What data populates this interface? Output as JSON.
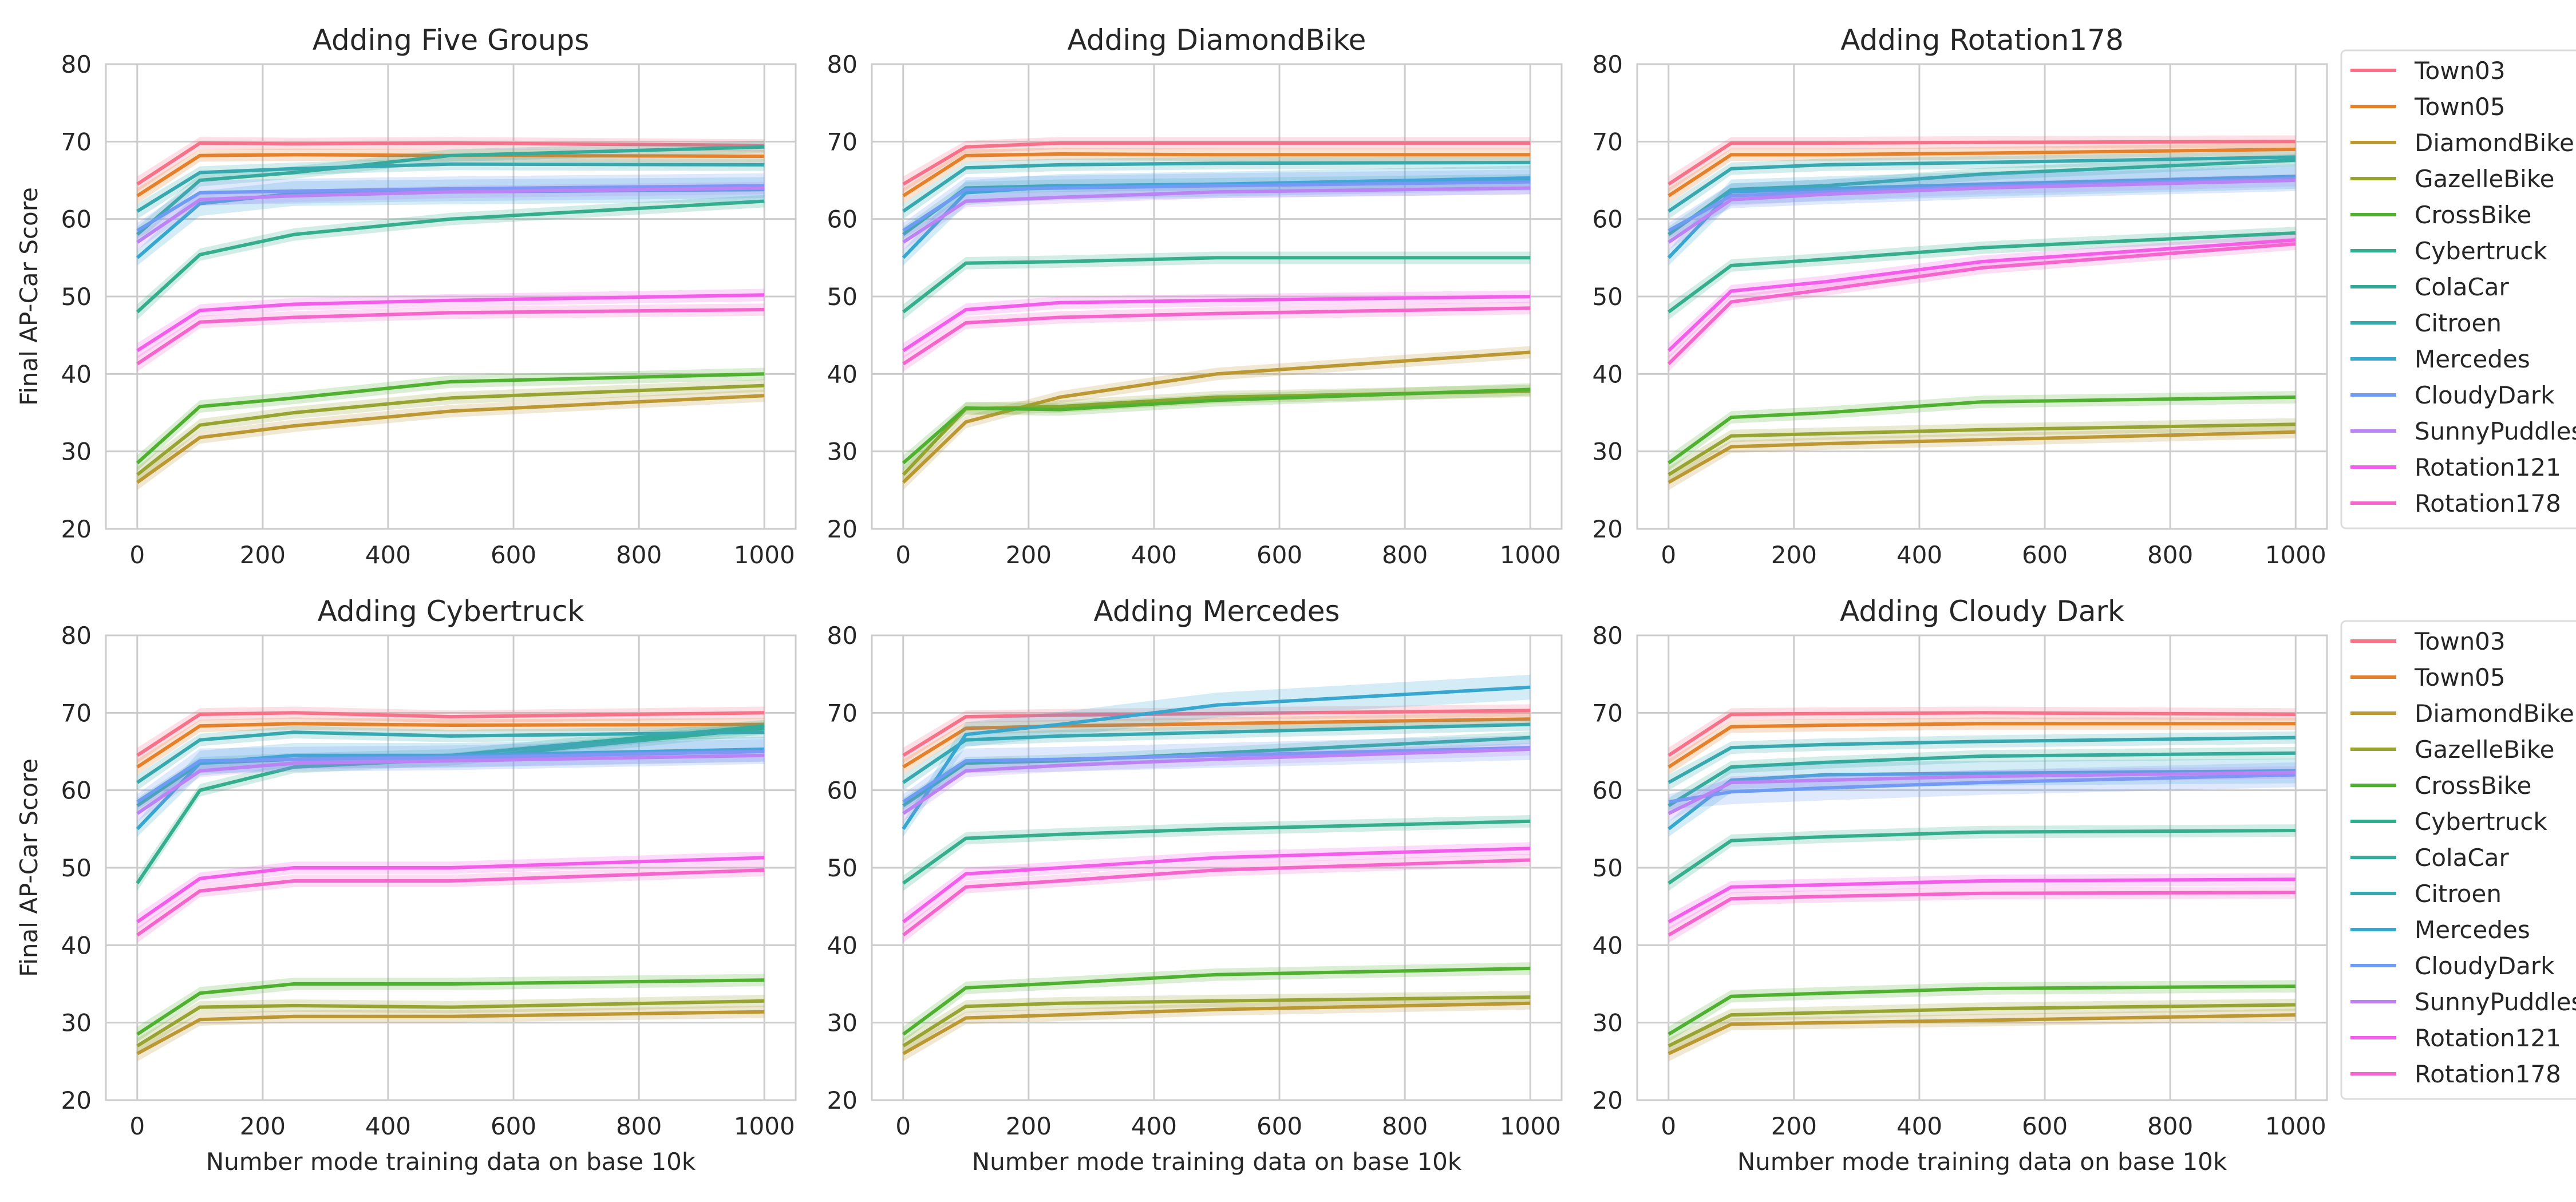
{
  "chart_data": [
    {
      "type": "line",
      "title": "Adding Five Groups",
      "xlabel": "",
      "ylabel": "Final AP-Car Score",
      "xlim": [
        -50,
        1050
      ],
      "ylim": [
        20,
        80
      ],
      "xticks": [
        0,
        200,
        400,
        600,
        800,
        1000
      ],
      "yticks": [
        20,
        30,
        40,
        50,
        60,
        70,
        80
      ],
      "x": [
        0,
        100,
        250,
        500,
        1000
      ],
      "series": [
        {
          "name": "Town03",
          "values": [
            64.5,
            69.8,
            69.7,
            69.8,
            69.5
          ]
        },
        {
          "name": "Town05",
          "values": [
            63.0,
            68.2,
            68.3,
            68.2,
            68.1
          ]
        },
        {
          "name": "DiamondBike",
          "values": [
            26.0,
            31.8,
            33.3,
            35.2,
            37.2
          ]
        },
        {
          "name": "GazelleBike",
          "values": [
            27.0,
            33.4,
            35.0,
            36.9,
            38.5
          ]
        },
        {
          "name": "CrossBike",
          "values": [
            28.5,
            35.8,
            36.9,
            39.0,
            40.0
          ]
        },
        {
          "name": "Cybertruck",
          "values": [
            48.0,
            55.4,
            58.0,
            60.0,
            62.3
          ]
        },
        {
          "name": "ColaCar",
          "values": [
            58.0,
            65.0,
            66.0,
            68.2,
            69.3
          ]
        },
        {
          "name": "Citroen",
          "values": [
            61.0,
            66.0,
            66.5,
            67.1,
            67.0
          ]
        },
        {
          "name": "Mercedes",
          "values": [
            55.0,
            62.0,
            63.3,
            63.5,
            63.8
          ]
        },
        {
          "name": "CloudyDark",
          "values": [
            58.5,
            63.4,
            63.6,
            63.9,
            64.3
          ]
        },
        {
          "name": "SunnyPuddles",
          "values": [
            57.0,
            62.5,
            63.0,
            63.5,
            64.0
          ]
        },
        {
          "name": "Rotation121",
          "values": [
            43.0,
            48.2,
            49.0,
            49.5,
            50.2
          ]
        },
        {
          "name": "Rotation178",
          "values": [
            41.3,
            46.7,
            47.3,
            47.9,
            48.3
          ]
        }
      ]
    },
    {
      "type": "line",
      "title": "Adding DiamondBike",
      "xlabel": "",
      "ylabel": "",
      "xlim": [
        -50,
        1050
      ],
      "ylim": [
        20,
        80
      ],
      "xticks": [
        0,
        200,
        400,
        600,
        800,
        1000
      ],
      "yticks": [
        20,
        30,
        40,
        50,
        60,
        70,
        80
      ],
      "x": [
        0,
        100,
        250,
        500,
        1000
      ],
      "series": [
        {
          "name": "Town03",
          "values": [
            64.5,
            69.3,
            69.8,
            69.8,
            69.8
          ]
        },
        {
          "name": "Town05",
          "values": [
            63.0,
            68.2,
            68.4,
            68.3,
            68.3
          ]
        },
        {
          "name": "DiamondBike",
          "values": [
            26.0,
            33.8,
            37.0,
            40.0,
            42.8
          ]
        },
        {
          "name": "GazelleBike",
          "values": [
            27.0,
            35.5,
            35.8,
            37.0,
            37.8
          ]
        },
        {
          "name": "CrossBike",
          "values": [
            28.5,
            35.6,
            35.4,
            36.6,
            38.0
          ]
        },
        {
          "name": "Cybertruck",
          "values": [
            48.0,
            54.3,
            54.5,
            55.0,
            55.0
          ]
        },
        {
          "name": "ColaCar",
          "values": [
            58.0,
            64.0,
            64.3,
            64.5,
            65.0
          ]
        },
        {
          "name": "Citroen",
          "values": [
            61.0,
            66.6,
            67.0,
            67.2,
            67.3
          ]
        },
        {
          "name": "Mercedes",
          "values": [
            55.0,
            63.4,
            64.2,
            64.5,
            65.3
          ]
        },
        {
          "name": "CloudyDark",
          "values": [
            58.5,
            63.8,
            64.0,
            64.3,
            64.8
          ]
        },
        {
          "name": "SunnyPuddles",
          "values": [
            57.0,
            62.3,
            62.8,
            63.5,
            64.0
          ]
        },
        {
          "name": "Rotation121",
          "values": [
            43.0,
            48.3,
            49.2,
            49.5,
            50.0
          ]
        },
        {
          "name": "Rotation178",
          "values": [
            41.3,
            46.6,
            47.3,
            47.8,
            48.5
          ]
        }
      ]
    },
    {
      "type": "line",
      "title": "Adding Rotation178",
      "xlabel": "",
      "ylabel": "",
      "xlim": [
        -50,
        1050
      ],
      "ylim": [
        20,
        80
      ],
      "xticks": [
        0,
        200,
        400,
        600,
        800,
        1000
      ],
      "yticks": [
        20,
        30,
        40,
        50,
        60,
        70,
        80
      ],
      "x": [
        0,
        100,
        250,
        500,
        1000
      ],
      "series": [
        {
          "name": "Town03",
          "values": [
            64.5,
            69.8,
            69.8,
            69.9,
            70.0
          ]
        },
        {
          "name": "Town05",
          "values": [
            63.0,
            68.3,
            68.3,
            68.5,
            69.0
          ]
        },
        {
          "name": "DiamondBike",
          "values": [
            26.0,
            30.6,
            31.0,
            31.5,
            32.5
          ]
        },
        {
          "name": "GazelleBike",
          "values": [
            27.0,
            32.0,
            32.3,
            32.8,
            33.5
          ]
        },
        {
          "name": "CrossBike",
          "values": [
            28.5,
            34.4,
            35.0,
            36.4,
            37.0
          ]
        },
        {
          "name": "Cybertruck",
          "values": [
            48.0,
            54.0,
            54.8,
            56.3,
            58.2
          ]
        },
        {
          "name": "ColaCar",
          "values": [
            58.0,
            63.8,
            64.3,
            65.8,
            67.6
          ]
        },
        {
          "name": "Citroen",
          "values": [
            61.0,
            66.5,
            67.0,
            67.3,
            68.0
          ]
        },
        {
          "name": "Mercedes",
          "values": [
            55.0,
            63.5,
            63.9,
            64.5,
            65.5
          ]
        },
        {
          "name": "CloudyDark",
          "values": [
            58.5,
            63.0,
            63.5,
            64.2,
            65.2
          ]
        },
        {
          "name": "SunnyPuddles",
          "values": [
            57.0,
            62.5,
            63.2,
            64.0,
            65.0
          ]
        },
        {
          "name": "Rotation121",
          "values": [
            43.0,
            50.7,
            51.9,
            54.5,
            57.3
          ]
        },
        {
          "name": "Rotation178",
          "values": [
            41.3,
            49.3,
            50.9,
            53.7,
            56.8
          ]
        }
      ]
    },
    {
      "type": "line",
      "title": "Adding Cybertruck",
      "xlabel": "Number mode training data on base 10k",
      "ylabel": "Final AP-Car Score",
      "xlim": [
        -50,
        1050
      ],
      "ylim": [
        20,
        80
      ],
      "xticks": [
        0,
        200,
        400,
        600,
        800,
        1000
      ],
      "yticks": [
        20,
        30,
        40,
        50,
        60,
        70,
        80
      ],
      "x": [
        0,
        100,
        250,
        500,
        1000
      ],
      "series": [
        {
          "name": "Town03",
          "values": [
            64.5,
            69.8,
            70.0,
            69.5,
            70.0
          ]
        },
        {
          "name": "Town05",
          "values": [
            63.0,
            68.3,
            68.6,
            68.4,
            68.5
          ]
        },
        {
          "name": "DiamondBike",
          "values": [
            26.0,
            30.4,
            30.8,
            30.8,
            31.4
          ]
        },
        {
          "name": "GazelleBike",
          "values": [
            27.0,
            32.0,
            32.2,
            32.0,
            32.8
          ]
        },
        {
          "name": "CrossBike",
          "values": [
            28.5,
            33.8,
            35.0,
            35.0,
            35.5
          ]
        },
        {
          "name": "Cybertruck",
          "values": [
            48.0,
            60.0,
            63.0,
            64.0,
            68.0
          ]
        },
        {
          "name": "ColaCar",
          "values": [
            58.0,
            63.5,
            64.0,
            64.5,
            68.3
          ]
        },
        {
          "name": "Citroen",
          "values": [
            61.0,
            66.5,
            67.5,
            67.0,
            67.5
          ]
        },
        {
          "name": "Mercedes",
          "values": [
            55.0,
            63.5,
            64.5,
            64.5,
            65.3
          ]
        },
        {
          "name": "CloudyDark",
          "values": [
            58.5,
            63.8,
            64.0,
            64.2,
            65.0
          ]
        },
        {
          "name": "SunnyPuddles",
          "values": [
            57.0,
            62.5,
            63.5,
            63.8,
            64.5
          ]
        },
        {
          "name": "Rotation121",
          "values": [
            43.0,
            48.6,
            50.0,
            50.0,
            51.3
          ]
        },
        {
          "name": "Rotation178",
          "values": [
            41.3,
            47.0,
            48.3,
            48.3,
            49.7
          ]
        }
      ]
    },
    {
      "type": "line",
      "title": "Adding Mercedes",
      "xlabel": "Number mode training data on base 10k",
      "ylabel": "",
      "xlim": [
        -50,
        1050
      ],
      "ylim": [
        20,
        80
      ],
      "xticks": [
        0,
        200,
        400,
        600,
        800,
        1000
      ],
      "yticks": [
        20,
        30,
        40,
        50,
        60,
        70,
        80
      ],
      "x": [
        0,
        100,
        250,
        500,
        1000
      ],
      "series": [
        {
          "name": "Town03",
          "values": [
            64.5,
            69.5,
            69.7,
            69.9,
            70.3
          ]
        },
        {
          "name": "Town05",
          "values": [
            63.0,
            68.0,
            68.3,
            68.6,
            69.2
          ]
        },
        {
          "name": "DiamondBike",
          "values": [
            26.0,
            30.6,
            31.0,
            31.7,
            32.5
          ]
        },
        {
          "name": "GazelleBike",
          "values": [
            27.0,
            32.1,
            32.5,
            32.8,
            33.3
          ]
        },
        {
          "name": "CrossBike",
          "values": [
            28.5,
            34.5,
            35.1,
            36.2,
            37.0
          ]
        },
        {
          "name": "Cybertruck",
          "values": [
            48.0,
            53.8,
            54.3,
            55.0,
            56.0
          ]
        },
        {
          "name": "ColaCar",
          "values": [
            58.0,
            63.5,
            63.8,
            64.8,
            66.8
          ]
        },
        {
          "name": "Citroen",
          "values": [
            61.0,
            66.5,
            67.0,
            67.5,
            68.5
          ]
        },
        {
          "name": "Mercedes",
          "values": [
            55.0,
            67.2,
            68.5,
            71.0,
            73.3
          ]
        },
        {
          "name": "CloudyDark",
          "values": [
            58.5,
            63.8,
            64.0,
            64.5,
            65.5
          ]
        },
        {
          "name": "SunnyPuddles",
          "values": [
            57.0,
            62.5,
            63.2,
            64.0,
            65.3
          ]
        },
        {
          "name": "Rotation121",
          "values": [
            43.0,
            49.2,
            50.0,
            51.3,
            52.5
          ]
        },
        {
          "name": "Rotation178",
          "values": [
            41.3,
            47.5,
            48.3,
            49.7,
            51.0
          ]
        }
      ]
    },
    {
      "type": "line",
      "title": "Adding Cloudy Dark",
      "xlabel": "Number mode training data on base 10k",
      "ylabel": "",
      "xlim": [
        -50,
        1050
      ],
      "ylim": [
        20,
        80
      ],
      "xticks": [
        0,
        200,
        400,
        600,
        800,
        1000
      ],
      "yticks": [
        20,
        30,
        40,
        50,
        60,
        70,
        80
      ],
      "x": [
        0,
        100,
        250,
        500,
        1000
      ],
      "series": [
        {
          "name": "Town03",
          "values": [
            64.5,
            69.8,
            69.9,
            70.0,
            69.8
          ]
        },
        {
          "name": "Town05",
          "values": [
            63.0,
            68.2,
            68.4,
            68.6,
            68.6
          ]
        },
        {
          "name": "DiamondBike",
          "values": [
            26.0,
            29.8,
            30.0,
            30.3,
            31.0
          ]
        },
        {
          "name": "GazelleBike",
          "values": [
            27.0,
            31.0,
            31.3,
            31.8,
            32.3
          ]
        },
        {
          "name": "CrossBike",
          "values": [
            28.5,
            33.4,
            33.8,
            34.4,
            34.7
          ]
        },
        {
          "name": "Cybertruck",
          "values": [
            48.0,
            53.5,
            54.0,
            54.6,
            54.8
          ]
        },
        {
          "name": "ColaCar",
          "values": [
            58.0,
            63.0,
            63.6,
            64.4,
            64.8
          ]
        },
        {
          "name": "Citroen",
          "values": [
            61.0,
            65.5,
            65.9,
            66.3,
            66.8
          ]
        },
        {
          "name": "Mercedes",
          "values": [
            55.0,
            61.3,
            62.0,
            62.2,
            62.5
          ]
        },
        {
          "name": "CloudyDark",
          "values": [
            58.5,
            59.8,
            60.3,
            61.0,
            62.0
          ]
        },
        {
          "name": "SunnyPuddles",
          "values": [
            57.0,
            61.0,
            61.3,
            61.8,
            62.3
          ]
        },
        {
          "name": "Rotation121",
          "values": [
            43.0,
            47.5,
            47.8,
            48.3,
            48.5
          ]
        },
        {
          "name": "Rotation178",
          "values": [
            41.3,
            46.0,
            46.3,
            46.7,
            46.8
          ]
        }
      ]
    }
  ],
  "legends": [
    [
      "Town03",
      "Town05",
      "DiamondBike",
      "GazelleBike",
      "CrossBike",
      "Cybertruck",
      "ColaCar",
      "Citroen",
      "Mercedes",
      "CloudyDark",
      "SunnyPuddles",
      "Rotation121",
      "Rotation178"
    ],
    [
      "Town03",
      "Town05",
      "DiamondBike",
      "GazelleBike",
      "CrossBike",
      "Cybertruck",
      "ColaCar",
      "Citroen",
      "Mercedes",
      "CloudyDark",
      "SunnyPuddles",
      "Rotation121",
      "Rotation178"
    ]
  ],
  "colors": {
    "Town03": "#f77189",
    "Town05": "#e5802b",
    "DiamondBike": "#bb9832",
    "GazelleBike": "#97a431",
    "CrossBike": "#50b131",
    "Cybertruck": "#34ae8d",
    "ColaCar": "#35ab9c",
    "Citroen": "#37a8ae",
    "Mercedes": "#38a7d0",
    "CloudyDark": "#6e9bf4",
    "SunnyPuddles": "#bb83f4",
    "Rotation121": "#f45deb",
    "Rotation178": "#f565cc"
  }
}
